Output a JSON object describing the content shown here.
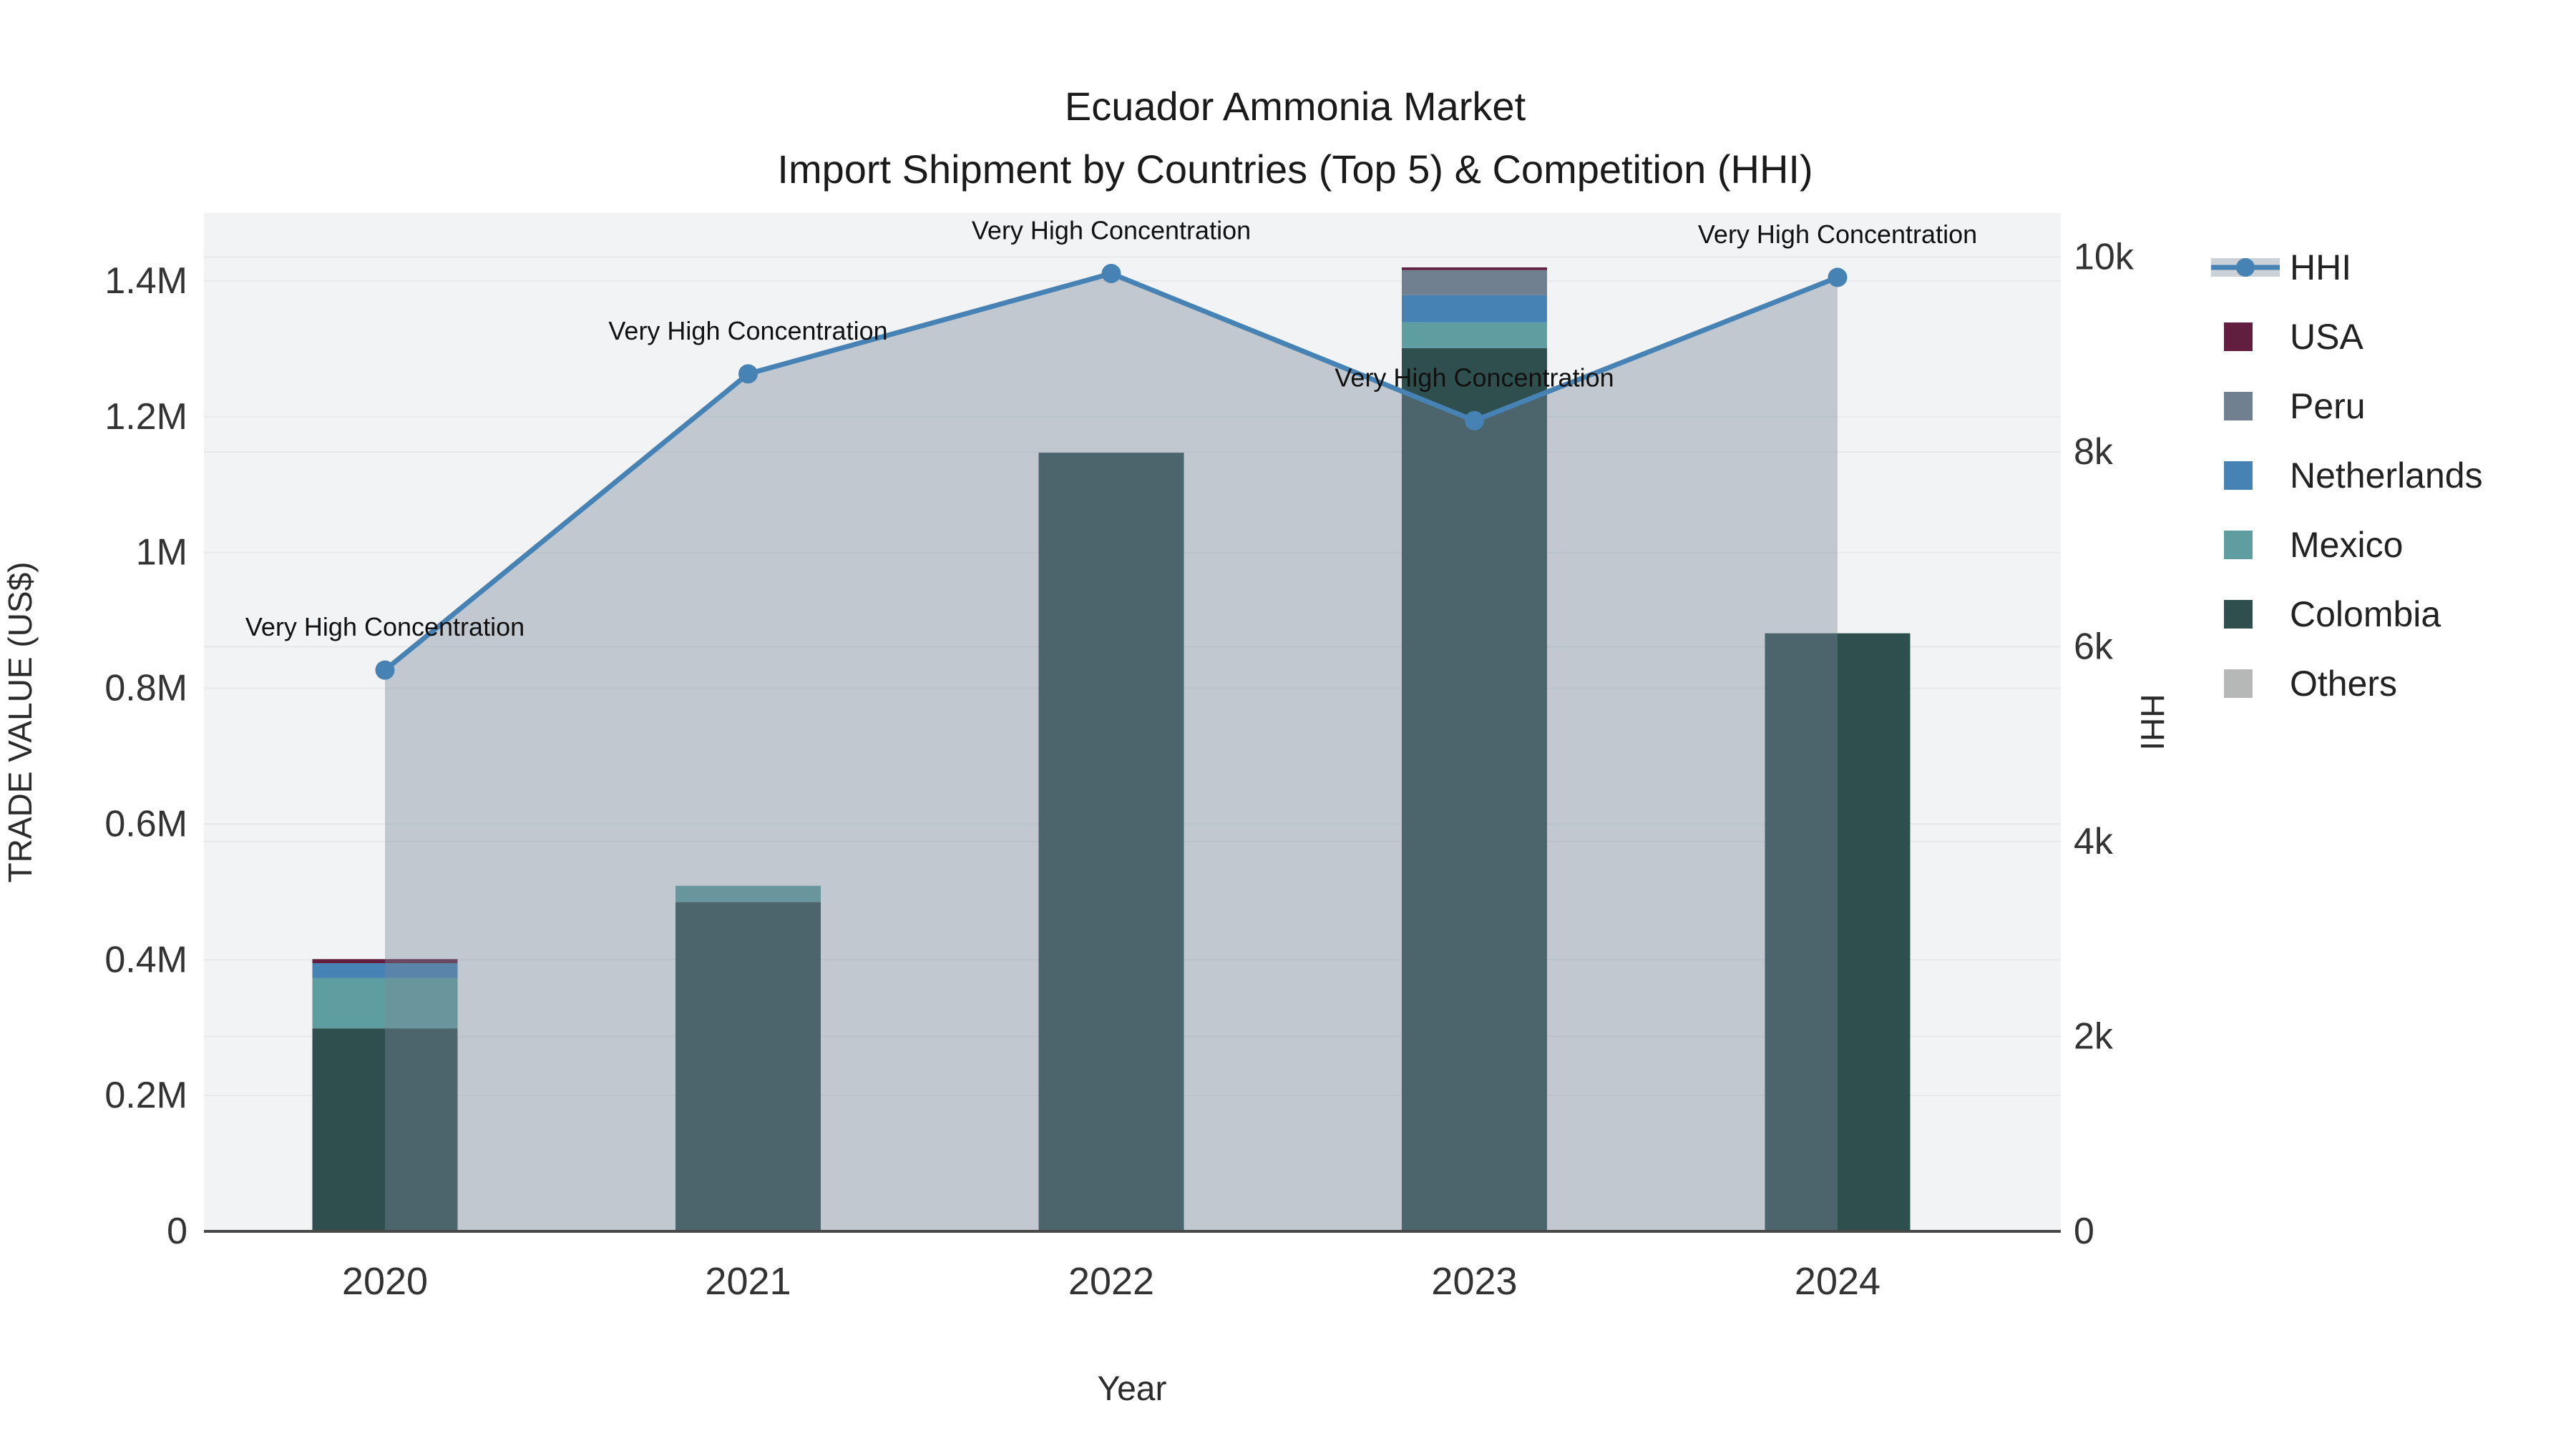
{
  "title": {
    "line1": "Ecuador Ammonia Market",
    "line2": "Import Shipment by Countries (Top 5) & Competition (HHI)"
  },
  "axes": {
    "x": {
      "title": "Year",
      "categories": [
        "2020",
        "2021",
        "2022",
        "2023",
        "2024"
      ]
    },
    "y_left": {
      "title": "TRADE VALUE (US$)",
      "range": [
        0,
        1500000
      ],
      "ticks": [
        {
          "v": 0,
          "label": "0"
        },
        {
          "v": 200000,
          "label": "0.2M"
        },
        {
          "v": 400000,
          "label": "0.4M"
        },
        {
          "v": 600000,
          "label": "0.6M"
        },
        {
          "v": 800000,
          "label": "0.8M"
        },
        {
          "v": 1000000,
          "label": "1M"
        },
        {
          "v": 1200000,
          "label": "1.2M"
        },
        {
          "v": 1400000,
          "label": "1.4M"
        }
      ]
    },
    "y_right": {
      "title": "HHI",
      "range": [
        0,
        10450
      ],
      "ticks": [
        {
          "v": 0,
          "label": "0"
        },
        {
          "v": 2000,
          "label": "2k"
        },
        {
          "v": 4000,
          "label": "4k"
        },
        {
          "v": 6000,
          "label": "6k"
        },
        {
          "v": 8000,
          "label": "8k"
        },
        {
          "v": 10000,
          "label": "10k"
        }
      ]
    }
  },
  "legend": {
    "items": [
      {
        "id": "hhi",
        "label": "HHI",
        "type": "line",
        "color": "#4682b4",
        "band_color": "#ccd1d8"
      },
      {
        "id": "usa",
        "label": "USA",
        "type": "square",
        "color": "#611e3f"
      },
      {
        "id": "peru",
        "label": "Peru",
        "type": "square",
        "color": "#708090"
      },
      {
        "id": "netherlands",
        "label": "Netherlands",
        "type": "square",
        "color": "#4682b4"
      },
      {
        "id": "mexico",
        "label": "Mexico",
        "type": "square",
        "color": "#5f9ea0"
      },
      {
        "id": "colombia",
        "label": "Colombia",
        "type": "square",
        "color": "#2f4f4f"
      },
      {
        "id": "others",
        "label": "Others",
        "type": "square",
        "color": "#b5b8b6"
      }
    ]
  },
  "chart_data": {
    "type": "bar+line",
    "categories": [
      "2020",
      "2021",
      "2022",
      "2023",
      "2024"
    ],
    "bar_value_unit": "US$",
    "stack_order": [
      "Colombia",
      "Mexico",
      "Netherlands",
      "Peru",
      "USA",
      "Others"
    ],
    "series": [
      {
        "name": "USA",
        "type": "bar",
        "axis": "left",
        "color": "#611e3f",
        "values": [
          6000,
          0,
          0,
          4000,
          0
        ]
      },
      {
        "name": "Peru",
        "type": "bar",
        "axis": "left",
        "color": "#708090",
        "values": [
          0,
          0,
          0,
          37000,
          0
        ]
      },
      {
        "name": "Netherlands",
        "type": "bar",
        "axis": "left",
        "color": "#4682b4",
        "values": [
          22000,
          0,
          0,
          40000,
          0
        ]
      },
      {
        "name": "Mexico",
        "type": "bar",
        "axis": "left",
        "color": "#5f9ea0",
        "values": [
          74000,
          24000,
          0,
          38000,
          0
        ]
      },
      {
        "name": "Colombia",
        "type": "bar",
        "axis": "left",
        "color": "#2f4f4f",
        "values": [
          299000,
          485000,
          1147000,
          1301000,
          881000
        ]
      },
      {
        "name": "Others",
        "type": "bar",
        "axis": "left",
        "color": "#b5b8b6",
        "values": [
          0,
          0,
          0,
          0,
          0
        ]
      },
      {
        "name": "HHI",
        "type": "line",
        "axis": "right",
        "color": "#4682b4",
        "fill_color": "rgba(119,136,153,0.4)",
        "marker": "circle",
        "values": [
          5760,
          8800,
          9830,
          8320,
          9790
        ]
      }
    ],
    "annotations": [
      {
        "category": "2020",
        "text": "Very High Concentration"
      },
      {
        "category": "2021",
        "text": "Very High Concentration"
      },
      {
        "category": "2022",
        "text": "Very High Concentration"
      },
      {
        "category": "2023",
        "text": "Very High Concentration"
      },
      {
        "category": "2024",
        "text": "Very High Concentration"
      }
    ],
    "plot_background": "#f2f3f4",
    "gridline_color": "#e7e9eb",
    "legend_position": "right"
  }
}
